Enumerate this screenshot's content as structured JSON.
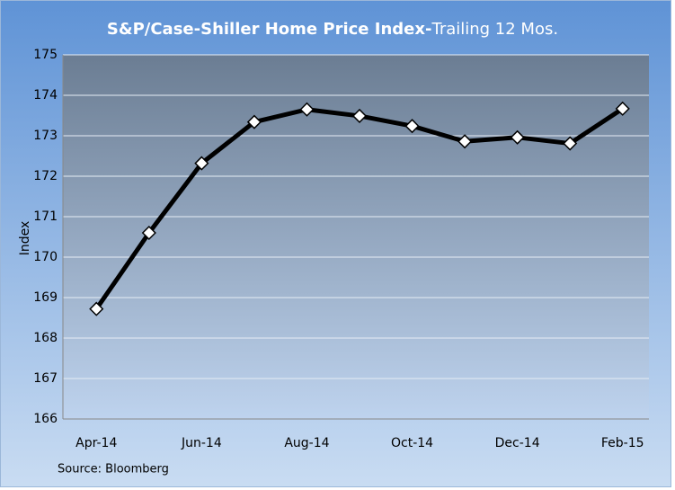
{
  "chart_data": {
    "type": "line",
    "title": "S&P/Case-Shiller Home Price Index-",
    "subtitle": "Trailing 12 Mos.",
    "y_label": "Index",
    "source": "Source: Bloomberg",
    "categories": [
      "Apr-14",
      null,
      "Jun-14",
      null,
      "Aug-14",
      null,
      "Oct-14",
      null,
      "Dec-14",
      null,
      "Feb-15"
    ],
    "series": [
      {
        "name": "Index",
        "color": "#000000",
        "values": [
          168.72,
          170.6,
          172.32,
          173.34,
          173.65,
          173.49,
          173.24,
          172.86,
          172.96,
          172.81,
          173.67
        ]
      }
    ],
    "ylim": [
      166,
      175
    ],
    "yticks": [
      166,
      167,
      168,
      169,
      170,
      171,
      172,
      173,
      174,
      175
    ],
    "grid": true
  }
}
